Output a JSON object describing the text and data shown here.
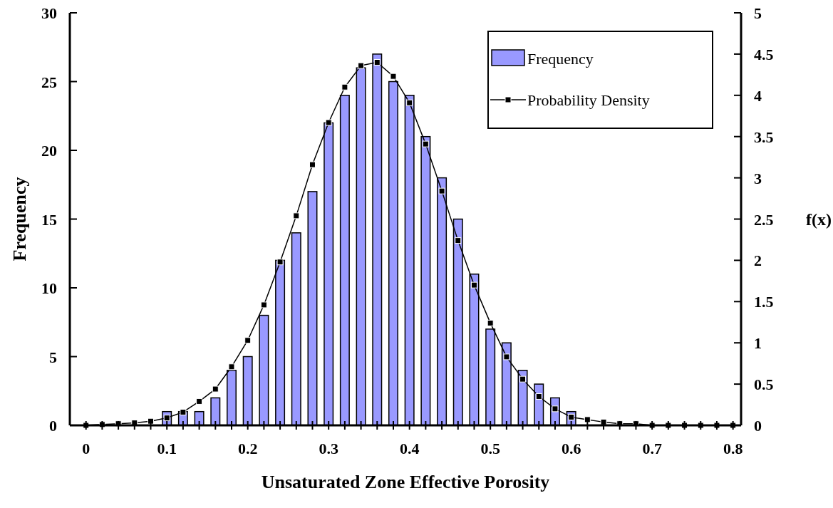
{
  "chart_data": {
    "type": "bar",
    "xlabel": "Unsaturated Zone Effective Porosity",
    "ylabel": "Frequency",
    "y2label": "f(x)",
    "xlim": [
      -0.02,
      0.81
    ],
    "xticks": [
      0,
      {
        "value": 0.02,
        "label": null
      },
      {
        "value": 0.04,
        "label": null
      },
      {
        "value": 0.06,
        "label": null
      },
      {
        "value": 0.08,
        "label": null
      },
      0.1,
      {
        "value": 0.12,
        "label": null
      },
      {
        "value": 0.14,
        "label": null
      },
      {
        "value": 0.16,
        "label": null
      },
      {
        "value": 0.18,
        "label": null
      },
      0.2,
      {
        "value": 0.22,
        "label": null
      },
      {
        "value": 0.24,
        "label": null
      },
      {
        "value": 0.26,
        "label": null
      },
      {
        "value": 0.28,
        "label": null
      },
      0.3,
      {
        "value": 0.32,
        "label": null
      },
      {
        "value": 0.34,
        "label": null
      },
      {
        "value": 0.36,
        "label": null
      },
      {
        "value": 0.38,
        "label": null
      },
      0.4,
      {
        "value": 0.42,
        "label": null
      },
      {
        "value": 0.44,
        "label": null
      },
      {
        "value": 0.46,
        "label": null
      },
      {
        "value": 0.48,
        "label": null
      },
      0.5,
      {
        "value": 0.52,
        "label": null
      },
      {
        "value": 0.54,
        "label": null
      },
      {
        "value": 0.56,
        "label": null
      },
      {
        "value": 0.58,
        "label": null
      },
      0.6,
      {
        "value": 0.62,
        "label": null
      },
      {
        "value": 0.64,
        "label": null
      },
      {
        "value": 0.66,
        "label": null
      },
      {
        "value": 0.68,
        "label": null
      },
      0.7,
      {
        "value": 0.72,
        "label": null
      },
      {
        "value": 0.74,
        "label": null
      },
      {
        "value": 0.76,
        "label": null
      },
      {
        "value": 0.78,
        "label": null
      },
      0.8
    ],
    "ylim": [
      0,
      30
    ],
    "yticks": [
      0,
      5,
      10,
      15,
      20,
      25,
      30
    ],
    "y2lim": [
      0,
      5
    ],
    "y2ticks": [
      0,
      0.5,
      1,
      1.5,
      2,
      2.5,
      3,
      3.5,
      4,
      4.5,
      5
    ],
    "legend": "top right",
    "grid": false,
    "series": [
      {
        "name": "Frequency",
        "color": "#9999ff",
        "x": [
          0.1,
          0.12,
          0.14,
          0.16,
          0.18,
          0.2,
          0.22,
          0.24,
          0.26,
          0.28,
          0.3,
          0.32,
          0.34,
          0.36,
          0.38,
          0.4,
          0.42,
          0.44,
          0.46,
          0.48,
          0.5,
          0.52,
          0.54,
          0.56,
          0.58,
          0.6
        ],
        "values": [
          1,
          1,
          1,
          2,
          4,
          5,
          8,
          12,
          14,
          17,
          22,
          24,
          26,
          27,
          25,
          24,
          21,
          18,
          15,
          11,
          7,
          6,
          4,
          3,
          2,
          1
        ]
      },
      {
        "name": "Probability Density",
        "type": "line",
        "axis": "y2",
        "color": "#000000",
        "marker": "square",
        "x": [
          0,
          0.02,
          0.04,
          0.06,
          0.08,
          0.1,
          0.12,
          0.14,
          0.16,
          0.18,
          0.2,
          0.22,
          0.24,
          0.26,
          0.28,
          0.3,
          0.32,
          0.34,
          0.36,
          0.38,
          0.4,
          0.42,
          0.44,
          0.46,
          0.48,
          0.5,
          0.52,
          0.54,
          0.56,
          0.58,
          0.6,
          0.62,
          0.64,
          0.66,
          0.68,
          0.7,
          0.72,
          0.74,
          0.76,
          0.78,
          0.8
        ],
        "values": [
          0,
          0.01,
          0.02,
          0.03,
          0.05,
          0.09,
          0.16,
          0.29,
          0.44,
          0.71,
          1.03,
          1.46,
          1.98,
          2.54,
          3.16,
          3.67,
          4.1,
          4.36,
          4.4,
          4.23,
          3.91,
          3.41,
          2.84,
          2.24,
          1.7,
          1.24,
          0.83,
          0.56,
          0.35,
          0.2,
          0.1,
          0.07,
          0.04,
          0.02,
          0.02,
          0,
          0,
          0,
          0,
          0,
          0
        ]
      }
    ]
  }
}
